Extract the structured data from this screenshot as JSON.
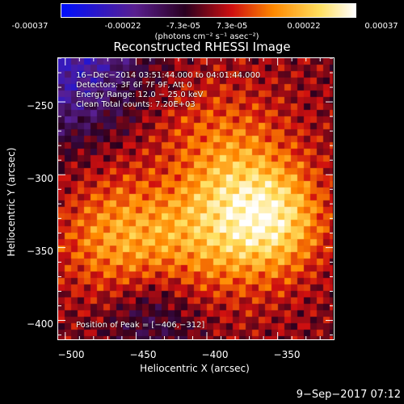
{
  "colorbar": {
    "ticks": [
      "-0.00037",
      "-0.00022",
      "-7.3e-05",
      "7.3e-05",
      "0.00022",
      "0.00037"
    ],
    "units": "(photons cm⁻² s⁻¹ asec⁻²)",
    "range": [
      -0.00037,
      0.00037
    ]
  },
  "chart_data": {
    "type": "heatmap",
    "title": "Reconstructed RHESSI Image",
    "xlabel": "Heliocentric X (arcsec)",
    "ylabel": "Heliocentric Y (arcsec)",
    "xlim": [
      -505,
      -311
    ],
    "ylim": [
      -413,
      -220
    ],
    "x_ticks": [
      "−500",
      "−450",
      "−400",
      "−350"
    ],
    "y_ticks": [
      "−250",
      "−300",
      "−350",
      "−400"
    ],
    "peak": [
      -406,
      -312
    ],
    "color_scale": [
      "#0010ff",
      "#5a2090",
      "#2a0020",
      "#d01010",
      "#ff8800",
      "#ffe060",
      "#ffffff"
    ]
  },
  "annotations": {
    "time": "16−Dec−2014 03:51:44.000 to 04:01:44.000",
    "detectors": "Detectors: 3F 6F 7F 9F, Att 0",
    "energy": "Energy Range: 12.0 − 25.0 keV",
    "clean": "Clean     Total counts: 7.20E+03",
    "peak": "Position of Peak = [−406,−312]"
  },
  "timestamp": "9−Sep−2017 07:12"
}
